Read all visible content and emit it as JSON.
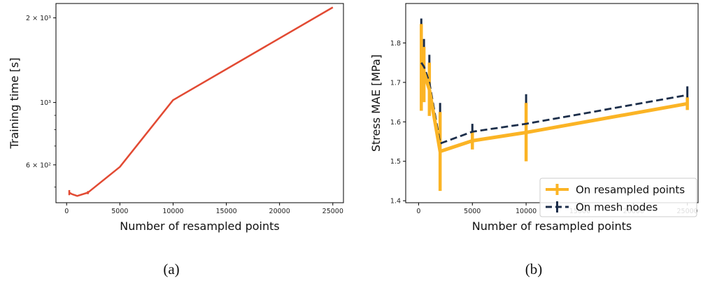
{
  "chart_data": [
    {
      "type": "line",
      "panel_label": "(a)",
      "xlabel": "Number of resampled points",
      "ylabel": "Training time [s]",
      "yscale": "log",
      "xlim": [
        -1000,
        26000
      ],
      "ylim": [
        440,
        2250
      ],
      "x_ticks": [
        0,
        5000,
        10000,
        15000,
        20000,
        25000
      ],
      "y_ticks": [
        {
          "value": 600,
          "label": "6 × 10²"
        },
        {
          "value": 1000,
          "label": "10³"
        },
        {
          "value": 2000,
          "label": "2 × 10³"
        }
      ],
      "color": "#e24a33",
      "series": [
        {
          "x": [
            250,
            500,
            1000,
            2000,
            5000,
            10000,
            25000
          ],
          "y": [
            478,
            472,
            465,
            478,
            590,
            1020,
            2180
          ],
          "err": [
            10,
            0,
            0,
            6,
            0,
            0,
            0
          ]
        }
      ]
    },
    {
      "type": "line",
      "panel_label": "(b)",
      "xlabel": "Number of resampled points",
      "ylabel": "Stress MAE [MPa]",
      "xlim": [
        -1200,
        26000
      ],
      "ylim": [
        1.395,
        1.9
      ],
      "x_ticks": [
        0,
        5000,
        10000,
        15000,
        20000,
        25000
      ],
      "y_ticks": [
        1.4,
        1.5,
        1.6,
        1.7,
        1.8
      ],
      "legend": {
        "position": "lower-right"
      },
      "series": [
        {
          "name": "On resampled points",
          "color": "#fbb425",
          "style": "solid",
          "x": [
            250,
            500,
            1000,
            2000,
            5000,
            10000,
            25000
          ],
          "y": [
            1.737,
            1.725,
            1.682,
            1.525,
            1.552,
            1.573,
            1.646
          ],
          "lo": [
            1.628,
            1.65,
            1.615,
            1.425,
            1.53,
            1.5,
            1.63
          ],
          "hi": [
            1.848,
            1.79,
            1.75,
            1.625,
            1.575,
            1.648,
            1.662
          ]
        },
        {
          "name": "On mesh nodes",
          "color": "#1c2e4a",
          "style": "dashed",
          "x": [
            250,
            500,
            1000,
            2000,
            5000,
            10000,
            25000
          ],
          "y": [
            1.75,
            1.74,
            1.7,
            1.545,
            1.575,
            1.595,
            1.668
          ],
          "lo": [
            1.645,
            1.66,
            1.625,
            1.438,
            1.555,
            1.52,
            1.645
          ],
          "hi": [
            1.862,
            1.81,
            1.77,
            1.648,
            1.595,
            1.67,
            1.69
          ]
        }
      ]
    }
  ]
}
